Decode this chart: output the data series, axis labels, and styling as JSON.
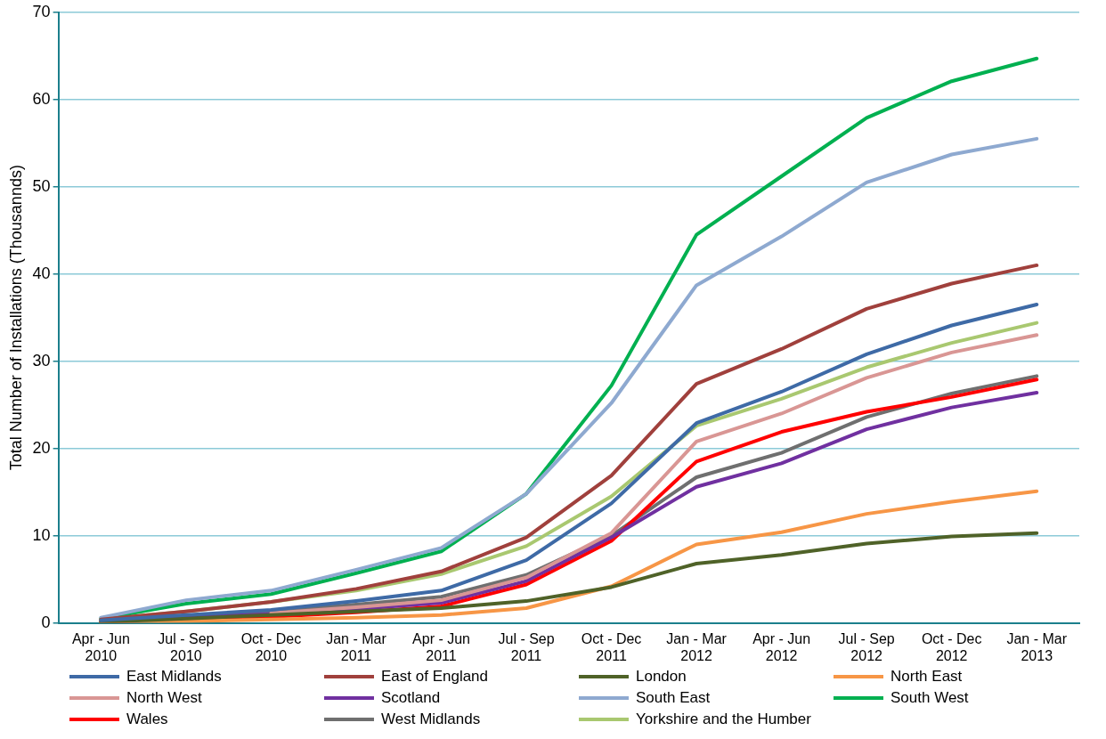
{
  "chart_data": {
    "type": "line",
    "ylabel": "Total Number of Installations (Thousannds)",
    "categories": [
      "Apr - Jun 2010",
      "Jul - Sep 2010",
      "Oct - Dec 2010",
      "Jan - Mar 2011",
      "Apr - Jun 2011",
      "Jul - Sep 2011",
      "Oct - Dec 2011",
      "Jan - Mar 2012",
      "Apr - Jun 2012",
      "Jul - Sep 2012",
      "Oct - Dec 2012",
      "Jan - Mar 2013"
    ],
    "series": [
      {
        "name": "East Midlands",
        "color": "#3e6aa6",
        "values": [
          0.3,
          0.9,
          1.5,
          2.5,
          3.7,
          7.2,
          13.7,
          22.9,
          26.5,
          30.8,
          34.1,
          36.5
        ]
      },
      {
        "name": "East of England",
        "color": "#a0403c",
        "values": [
          0.4,
          1.3,
          2.4,
          3.9,
          5.9,
          9.8,
          16.9,
          27.4,
          31.4,
          36.0,
          38.9,
          41.0
        ]
      },
      {
        "name": "London",
        "color": "#4f6228",
        "values": [
          0.1,
          0.5,
          0.9,
          1.3,
          1.7,
          2.5,
          4.1,
          6.8,
          7.8,
          9.1,
          9.9,
          10.3
        ]
      },
      {
        "name": "North East",
        "color": "#f79646",
        "values": [
          0.1,
          0.2,
          0.4,
          0.6,
          0.9,
          1.7,
          4.2,
          9.0,
          10.4,
          12.5,
          13.9,
          15.1
        ]
      },
      {
        "name": "North West",
        "color": "#d99694",
        "values": [
          null,
          null,
          1.1,
          1.8,
          2.6,
          5.2,
          10.3,
          20.8,
          24.0,
          28.1,
          31.0,
          33.0
        ]
      },
      {
        "name": "Scotland",
        "color": "#7030a0",
        "values": [
          0.2,
          0.6,
          1.0,
          1.6,
          2.3,
          4.8,
          9.8,
          15.6,
          18.3,
          22.2,
          24.7,
          26.4
        ]
      },
      {
        "name": "South East",
        "color": "#8ea9d0",
        "values": [
          0.6,
          2.6,
          3.7,
          6.1,
          8.6,
          14.8,
          25.2,
          38.7,
          44.3,
          50.5,
          53.7,
          55.5
        ]
      },
      {
        "name": "South West",
        "color": "#00b050",
        "values": [
          0.5,
          2.2,
          3.3,
          5.7,
          8.2,
          14.8,
          27.2,
          44.5,
          51.2,
          57.9,
          62.1,
          64.7
        ]
      },
      {
        "name": "Wales",
        "color": "#ff0000",
        "values": [
          0.1,
          0.4,
          0.7,
          1.2,
          1.9,
          4.4,
          9.4,
          18.5,
          21.9,
          24.2,
          25.9,
          27.9
        ]
      },
      {
        "name": "West Midlands",
        "color": "#6f6f6f",
        "values": [
          0.3,
          0.8,
          1.3,
          2.1,
          3.0,
          5.5,
          10.0,
          16.7,
          19.5,
          23.6,
          26.3,
          28.3
        ]
      },
      {
        "name": "Yorkshire and the Humber",
        "color": "#a9c870",
        "values": [
          0.4,
          1.3,
          2.4,
          3.7,
          5.6,
          8.8,
          14.5,
          22.6,
          25.7,
          29.3,
          32.1,
          34.4
        ]
      }
    ],
    "ylim": [
      0,
      70
    ],
    "yticks": [
      0,
      10,
      20,
      30,
      40,
      50,
      60,
      70
    ],
    "grid": "y",
    "legend": "bottom",
    "marker": "none",
    "line_style": "solid"
  }
}
